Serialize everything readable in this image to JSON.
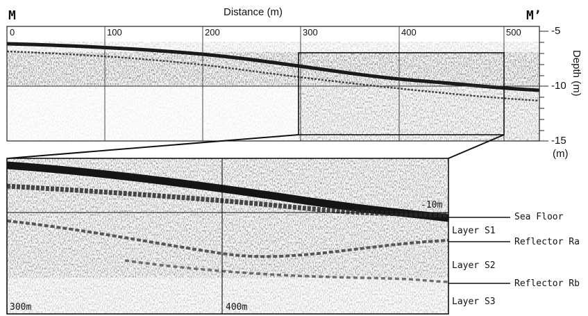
{
  "top_panel": {
    "left_marker": "M",
    "right_marker": "M’",
    "x_axis_title": "Distance (m)",
    "x_tick_labels": [
      "0",
      "100",
      "200",
      "300",
      "400",
      "500"
    ],
    "depth_axis_title": "Depth (m)",
    "depth_tick_labels": [
      "-5",
      "-10",
      "-15"
    ],
    "depth_unit_note": "(m)"
  },
  "zoom_panel": {
    "depth_label": "-10m",
    "distance_labels": [
      "300m",
      "400m"
    ]
  },
  "interpretation": {
    "labels": [
      "Sea Floor",
      "Layer S1",
      "Reflector Ra",
      "Layer S2",
      "Reflector Rb",
      "Layer S3"
    ]
  },
  "colors": {
    "ink": "#111111",
    "frame": "#222222",
    "grid": "#333333"
  }
}
